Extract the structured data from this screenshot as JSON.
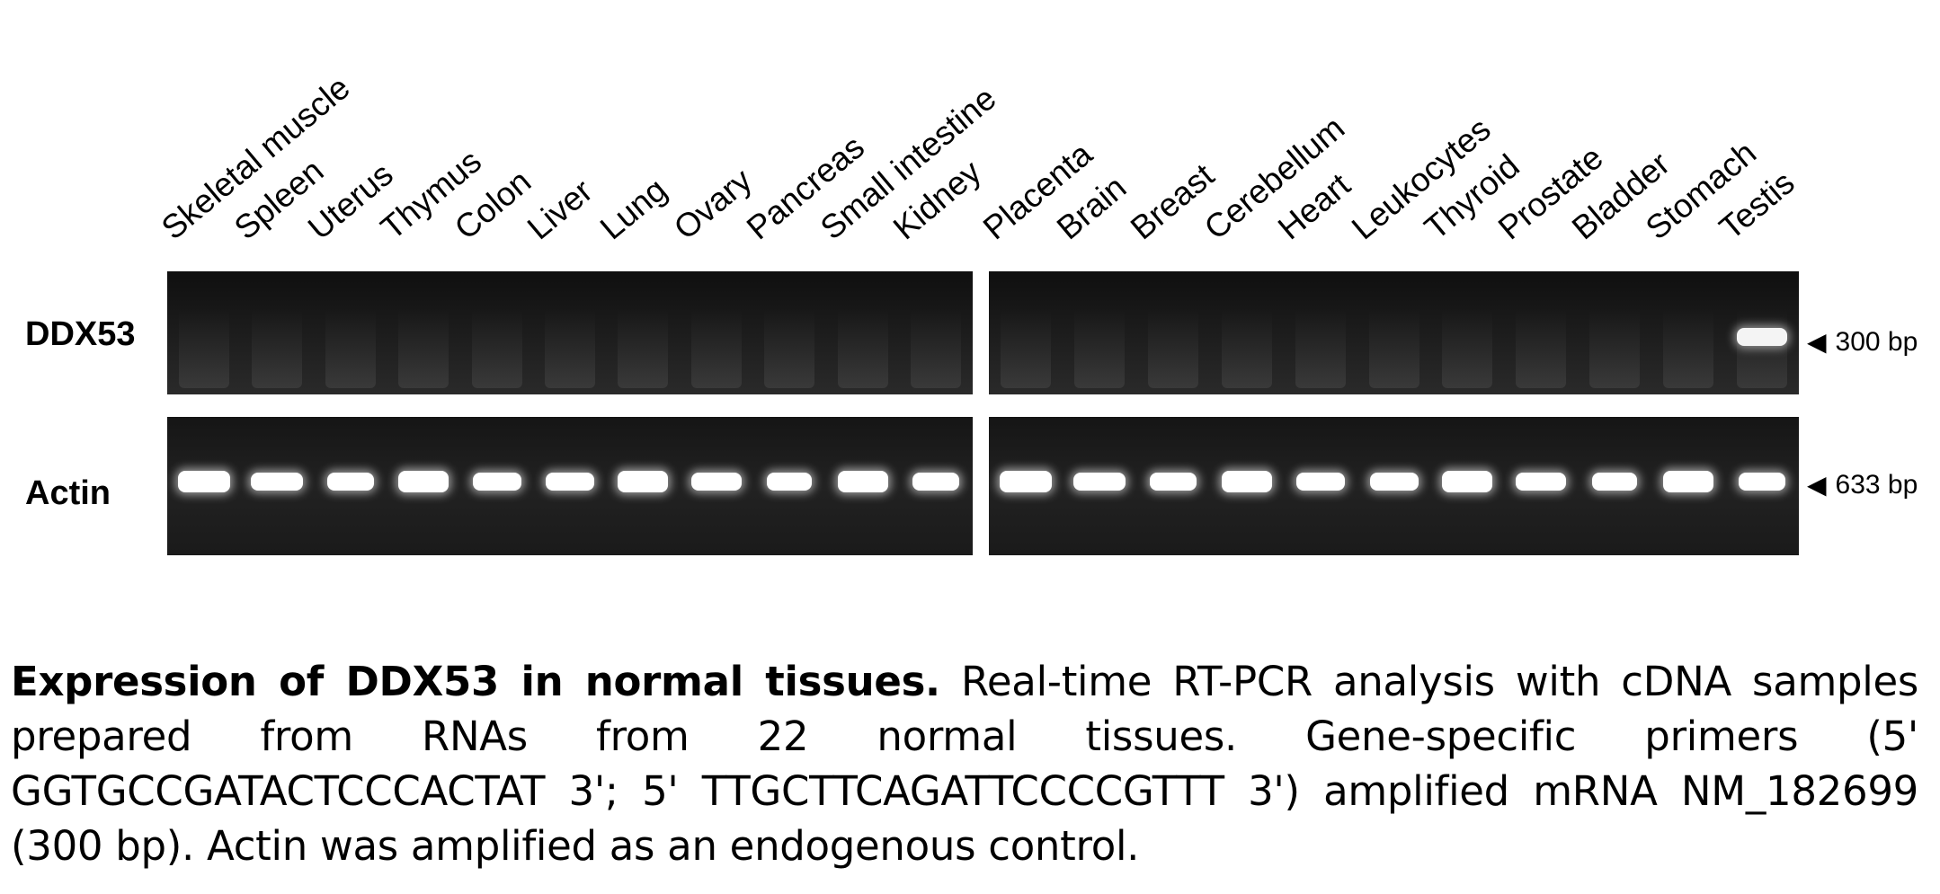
{
  "figure": {
    "lanes_left": [
      "Skeletal muscle",
      "Spleen",
      "Uterus",
      "Thymus",
      "Colon",
      "Liver",
      "Lung",
      "Ovary",
      "Pancreas",
      "Small intestine",
      "Kidney"
    ],
    "lanes_right": [
      "Placenta",
      "Brain",
      "Breast",
      "Cerebellum",
      "Heart",
      "Leukocytes",
      "Thyroid",
      "Prostate",
      "Bladder",
      "Stomach",
      "Testis"
    ],
    "rows": {
      "ddx53_label": "DDX53",
      "actin_label": "Actin"
    },
    "markers": {
      "ddx53_size": "300 bp",
      "actin_size": "633 bp"
    },
    "ddx53_band_lane": "Testis"
  },
  "caption": {
    "title": "Expression of DDX53 in normal tissues.",
    "body": " Real-time RT-PCR  analysis with cDNA samples prepared from RNAs from 22 normal tissues. Gene-specific primers (5' GGTGCCGATACTCCCACTAT 3'; 5' TTGCTTCAGATTCCCCGTTT 3') amplified mRNA NM_182699 (300 bp). Actin was amplified as an endogenous control."
  }
}
